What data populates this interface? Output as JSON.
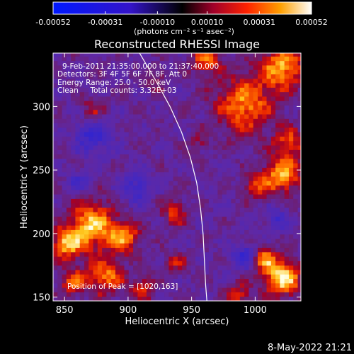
{
  "chart_data": {
    "type": "heatmap",
    "title": "Reconstructed RHESSI Image",
    "xlabel": "Heliocentric X (arcsec)",
    "ylabel": "Heliocentric Y (arcsec)",
    "xlim": [
      841,
      1036
    ],
    "ylim": [
      147,
      342
    ],
    "x_ticks": [
      850,
      900,
      950,
      1000
    ],
    "y_ticks": [
      150,
      200,
      250,
      300
    ],
    "colorbar": {
      "ticks": [
        -0.00052,
        -0.00031,
        -0.0001,
        0.0001,
        0.00031,
        0.00052
      ],
      "tick_labels": [
        "-0.00052",
        "-0.00031",
        "-0.00010",
        "0.00010",
        "0.00031",
        "0.00052"
      ],
      "range": [
        -0.00052,
        0.00052
      ],
      "unit_label": "(photons cm⁻² s⁻¹ asec⁻²)"
    },
    "annotations": [
      "9-Feb-2011 21:35:00.000 to 21:37:40.000",
      "Detectors: 3F 4F 5F 6F 7F 8F, Att 0",
      "Energy Range: 25.0 - 50.0 keV",
      "Clean     Total counts: 3.32E+03"
    ],
    "peak_label": "Position of Peak = [1020,163]",
    "peak_position": [
      1020,
      163
    ],
    "limb_curve": [
      [
        909,
        342
      ],
      [
        922,
        320
      ],
      [
        933,
        300
      ],
      [
        942,
        280
      ],
      [
        949,
        260
      ],
      [
        954,
        240
      ],
      [
        957,
        220
      ],
      [
        959,
        200
      ],
      [
        960,
        180
      ],
      [
        961,
        160
      ],
      [
        962,
        147
      ]
    ],
    "colors": {
      "background": "#000000",
      "negative_low": "#0000ff",
      "zero": "#6a24a8",
      "positive_mid": "#ff3a00",
      "positive_high": "#ffffff"
    }
  },
  "footer": {
    "timestamp": "8-May-2022 21:21"
  }
}
